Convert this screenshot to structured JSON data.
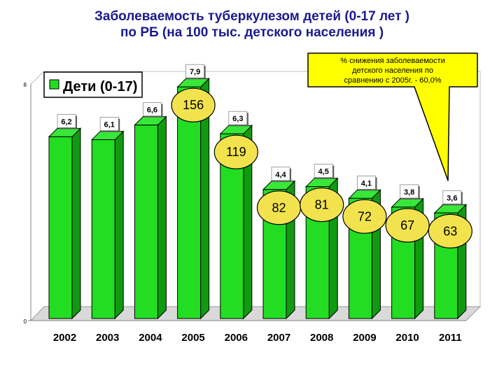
{
  "header": {
    "title_line1": "Заболеваемость  туберкулезом детей (0-17 лет )",
    "title_line2": "по РБ (на 100 тыс. детского населения )"
  },
  "chart_data": {
    "type": "bar",
    "categories": [
      "2002",
      "2003",
      "2004",
      "2005",
      "2006",
      "2007",
      "2008",
      "2009",
      "2010",
      "2011"
    ],
    "series": [
      {
        "name": "Дети (0-17)",
        "values": [
          6.2,
          6.1,
          6.6,
          7.9,
          6.3,
          4.4,
          4.5,
          4.1,
          3.8,
          3.6
        ]
      }
    ],
    "value_labels": [
      "6,2",
      "6,1",
      "6,6",
      "7,9",
      "6,3",
      "4,4",
      "4,5",
      "4,1",
      "3,8",
      "3,6"
    ],
    "yticks": [
      "0",
      "8"
    ],
    "ylim": [
      0,
      8
    ],
    "legend_position": "top-left",
    "bar_color": "#22dd22",
    "bubbles": [
      {
        "label": "156",
        "category": "2005"
      },
      {
        "label": "119",
        "category": "2006"
      },
      {
        "label": "82",
        "category": "2007"
      },
      {
        "label": "81",
        "category": "2008"
      },
      {
        "label": "72",
        "category": "2009"
      },
      {
        "label": "67",
        "category": "2010"
      },
      {
        "label": "63",
        "category": "2011"
      }
    ],
    "bubble_color": "#f2e34e",
    "callout": {
      "line1": "%  снижения заболеваемости",
      "line2": "детского населения  по",
      "line3": "сравнению с 2005г.  -  60,0%",
      "color": "#ffff00"
    }
  }
}
